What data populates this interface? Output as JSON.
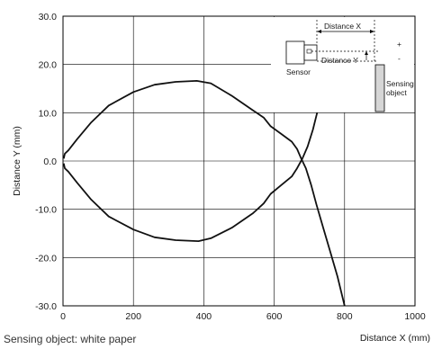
{
  "chart_data": {
    "type": "line",
    "xlabel": "Distance X (mm)",
    "ylabel": "Distance Y (mm)",
    "xlim": [
      0,
      1000
    ],
    "ylim": [
      -30,
      30
    ],
    "x_ticks": [
      0,
      200,
      400,
      600,
      800,
      1000
    ],
    "y_ticks": [
      30,
      20,
      10,
      0,
      -10,
      -20,
      -30
    ],
    "x_tick_labels": [
      "0",
      "200",
      "400",
      "600",
      "800",
      "1000"
    ],
    "y_tick_labels": [
      "30.0",
      "20.0",
      "10.0",
      "0.0",
      "-10.0",
      "-20.0",
      "-30.0"
    ],
    "grid": true,
    "series": [
      {
        "points": [
          [
            2,
            0.5
          ],
          [
            5,
            1.5
          ],
          [
            15,
            2.2
          ],
          [
            40,
            4.5
          ],
          [
            80,
            8
          ],
          [
            130,
            11.5
          ],
          [
            200,
            14.3
          ],
          [
            260,
            15.8
          ],
          [
            320,
            16.4
          ],
          [
            380,
            16.6
          ],
          [
            420,
            16.1
          ],
          [
            480,
            13.5
          ],
          [
            540,
            10.5
          ],
          [
            570,
            9
          ],
          [
            590,
            7.2
          ],
          [
            620,
            5.6
          ],
          [
            650,
            4
          ],
          [
            665,
            2.5
          ],
          [
            675,
            0.8
          ],
          [
            690,
            -1.5
          ],
          [
            705,
            -5
          ],
          [
            720,
            -9
          ],
          [
            740,
            -14
          ],
          [
            760,
            -19
          ],
          [
            780,
            -24
          ],
          [
            800,
            -30
          ]
        ]
      },
      {
        "points": [
          [
            2,
            -0.5
          ],
          [
            5,
            -1.5
          ],
          [
            15,
            -2.2
          ],
          [
            40,
            -4.5
          ],
          [
            80,
            -8
          ],
          [
            130,
            -11.5
          ],
          [
            200,
            -14.2
          ],
          [
            260,
            -15.8
          ],
          [
            320,
            -16.4
          ],
          [
            385,
            -16.6
          ],
          [
            420,
            -16
          ],
          [
            480,
            -13.8
          ],
          [
            540,
            -10.8
          ],
          [
            570,
            -8.8
          ],
          [
            590,
            -6.8
          ],
          [
            620,
            -5
          ],
          [
            650,
            -3.2
          ],
          [
            665,
            -1.5
          ],
          [
            680,
            0.5
          ],
          [
            695,
            3
          ],
          [
            710,
            6.5
          ],
          [
            722,
            10
          ]
        ]
      }
    ]
  },
  "inset": {
    "distance_x_label": "Distance X",
    "distance_y_label": "Distance Y",
    "sensor_label": "Sensor",
    "sensing_object_label_1": "Sensing",
    "sensing_object_label_2": "object",
    "plus_sign": "+",
    "minus_sign": "-"
  },
  "caption": "Sensing object: white paper"
}
